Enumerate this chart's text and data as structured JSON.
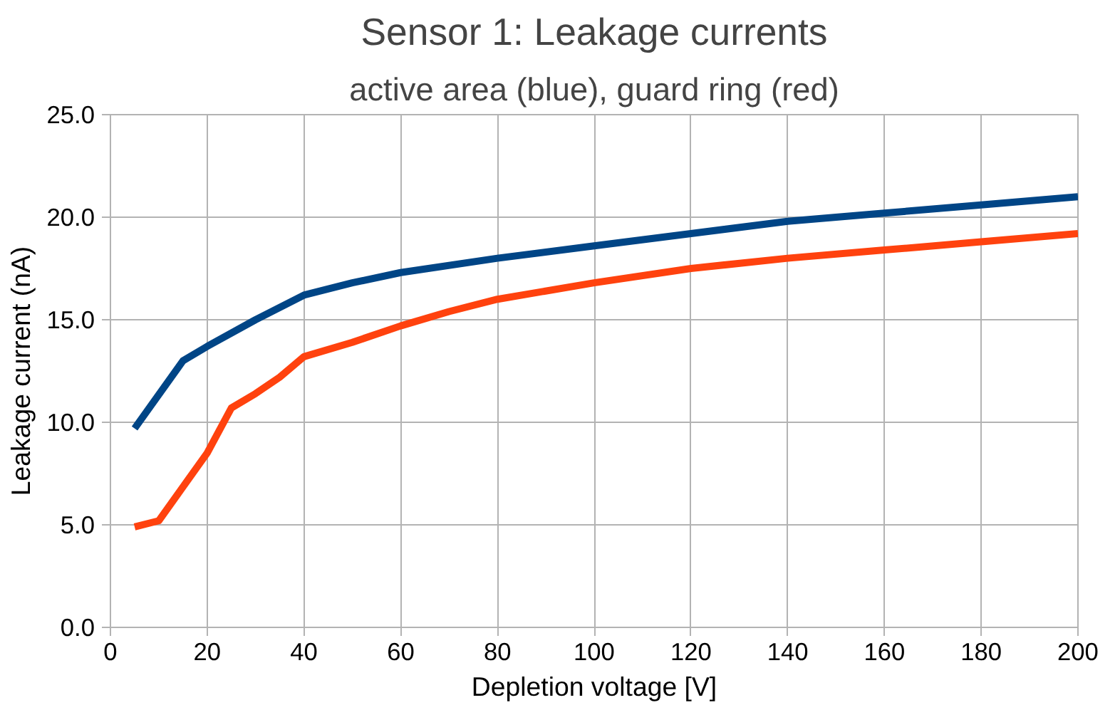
{
  "chart_data": {
    "type": "line",
    "title": "Sensor 1: Leakage currents",
    "subtitle": "active area (blue), guard ring (red)",
    "xlabel": "Depletion voltage [V]",
    "ylabel": "Leakage current (nA)",
    "xlim": [
      0,
      200
    ],
    "xticks": [
      0,
      20,
      40,
      60,
      80,
      100,
      120,
      140,
      160,
      180,
      200
    ],
    "ylim": [
      0,
      25
    ],
    "yticks": [
      {
        "value": 0,
        "label": "0.0"
      },
      {
        "value": 5,
        "label": "5.0"
      },
      {
        "value": 10,
        "label": "10.0"
      },
      {
        "value": 15,
        "label": "15.0"
      },
      {
        "value": 20,
        "label": "20.0"
      },
      {
        "value": 25,
        "label": "25.0"
      }
    ],
    "grid": true,
    "marker": "none",
    "line_style": "solid",
    "series": [
      {
        "color": "#004586",
        "x": [
          5,
          15,
          20,
          30,
          40,
          50,
          60,
          80,
          100,
          120,
          140,
          160,
          180,
          200
        ],
        "values": [
          9.7,
          13.0,
          13.7,
          15.0,
          16.2,
          16.8,
          17.3,
          18.0,
          18.6,
          19.2,
          19.8,
          20.2,
          20.6,
          21.0
        ]
      },
      {
        "color": "#ff420e",
        "x": [
          5,
          10,
          20,
          25,
          30,
          35,
          40,
          50,
          60,
          70,
          80,
          100,
          120,
          140,
          160,
          180,
          200
        ],
        "values": [
          4.9,
          5.2,
          8.5,
          10.7,
          11.4,
          12.2,
          13.2,
          13.9,
          14.7,
          15.4,
          16.0,
          16.8,
          17.5,
          18.0,
          18.4,
          18.8,
          19.2
        ]
      }
    ]
  }
}
